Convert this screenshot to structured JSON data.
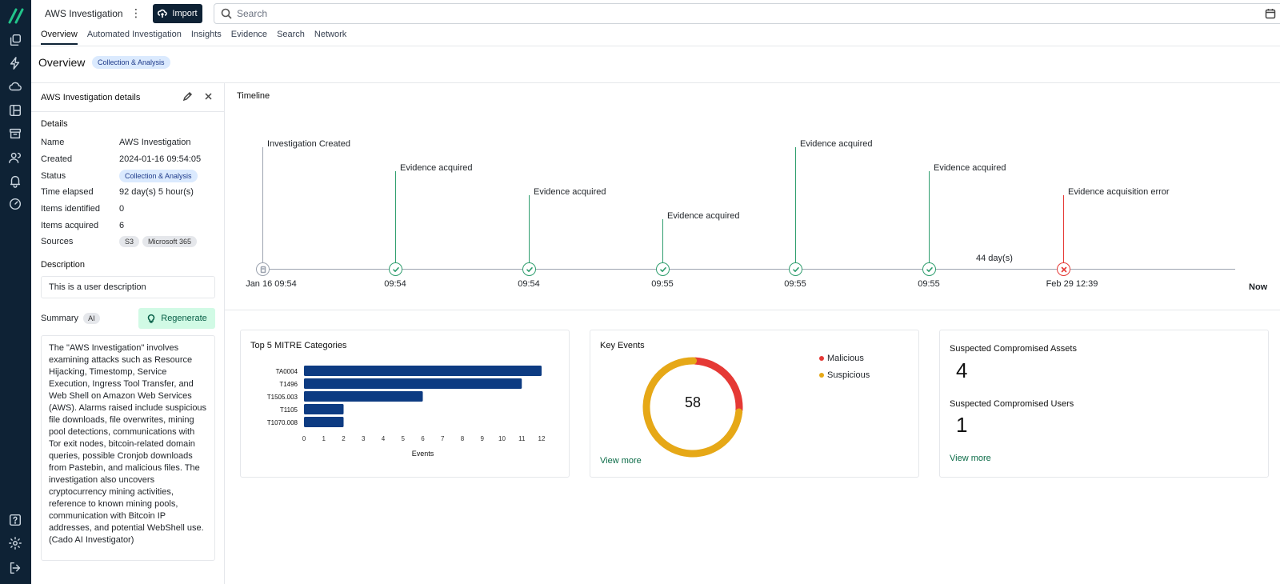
{
  "app": {
    "title": "AWS Investigation",
    "import_label": "Import",
    "search_placeholder": "Search"
  },
  "tabs": [
    {
      "label": "Overview",
      "active": true
    },
    {
      "label": "Automated Investigation"
    },
    {
      "label": "Insights"
    },
    {
      "label": "Evidence"
    },
    {
      "label": "Search"
    },
    {
      "label": "Network"
    }
  ],
  "overview": {
    "title": "Overview",
    "status_pill": "Collection & Analysis"
  },
  "details": {
    "panel_title": "AWS Investigation details",
    "section_label": "Details",
    "rows": [
      {
        "key": "Name",
        "value": "AWS Investigation"
      },
      {
        "key": "Created",
        "value": "2024-01-16 09:54:05"
      },
      {
        "key": "Status",
        "value": "Collection & Analysis"
      },
      {
        "key": "Time elapsed",
        "value": "92 day(s) 5 hour(s)"
      },
      {
        "key": "Items identified",
        "value": "0"
      },
      {
        "key": "Items acquired",
        "value": "6"
      },
      {
        "key": "Sources",
        "value": ""
      }
    ],
    "sources": [
      "S3",
      "Microsoft 365"
    ],
    "description_label": "Description",
    "description": "This is a user description",
    "summary_label": "Summary",
    "ai_tag": "AI",
    "regenerate_label": "Regenerate",
    "summary": "The \"AWS Investigation\" involves examining attacks such as Resource Hijacking, Timestomp, Service Execution, Ingress Tool Transfer, and Web Shell on Amazon Web Services (AWS). Alarms raised include suspicious file downloads, file overwrites, mining pool detections, communications with Tor exit nodes, bitcoin-related domain queries, possible Cronjob downloads from Pastebin, and malicious files. The investigation also uncovers cryptocurrency mining activities, reference to known mining pools, communication with Bitcoin IP addresses, and potential WebShell use. (Cado AI Investigator)"
  },
  "timeline": {
    "title": "Timeline",
    "events": [
      {
        "label": "Investigation Created",
        "time": "Jan 16 09:54",
        "status": "created"
      },
      {
        "label": "Evidence acquired",
        "time": "09:54",
        "status": "ok"
      },
      {
        "label": "Evidence acquired",
        "time": "09:54",
        "status": "ok"
      },
      {
        "label": "Evidence acquired",
        "time": "09:55",
        "status": "ok"
      },
      {
        "label": "Evidence acquired",
        "time": "09:55",
        "status": "ok"
      },
      {
        "label": "Evidence acquired",
        "time": "09:55",
        "status": "ok"
      },
      {
        "label": "Evidence acquisition error",
        "time": "Feb 29 12:39",
        "status": "error"
      }
    ],
    "gap_label": "44 day(s)",
    "now_label": "Now",
    "colors": {
      "ok": "#2f9e6e",
      "error": "#e53935",
      "created": "#9ca3af"
    }
  },
  "mitre": {
    "title": "Top 5 MITRE Categories",
    "xlabel": "Events"
  },
  "key_events": {
    "title": "Key Events",
    "total": "58",
    "legend": [
      {
        "name": "Malicious",
        "color": "#e53935"
      },
      {
        "name": "Suspicious",
        "color": "#e6a817"
      }
    ],
    "view_more": "View more"
  },
  "compromised": {
    "assets_label": "Suspected Compromised Assets",
    "assets_value": "4",
    "users_label": "Suspected Compromised Users",
    "users_value": "1",
    "view_more": "View more"
  },
  "chart_data": [
    {
      "type": "bar",
      "orientation": "horizontal",
      "title": "Top 5 MITRE Categories",
      "categories": [
        "TA0004",
        "T1496",
        "T1505.003",
        "T1105",
        "T1070.008"
      ],
      "values": [
        12,
        11,
        6,
        2,
        2
      ],
      "xlabel": "Events",
      "xlim": [
        0,
        12
      ],
      "xticks": [
        0,
        1,
        2,
        3,
        4,
        5,
        6,
        7,
        8,
        9,
        10,
        11,
        12
      ],
      "color": "#0d3b82"
    },
    {
      "type": "pie",
      "donut": true,
      "title": "Key Events",
      "total": 58,
      "series": [
        {
          "name": "Malicious",
          "value": 15,
          "color": "#e53935"
        },
        {
          "name": "Suspicious",
          "value": 43,
          "color": "#e6a817"
        }
      ],
      "legend": "right"
    }
  ]
}
